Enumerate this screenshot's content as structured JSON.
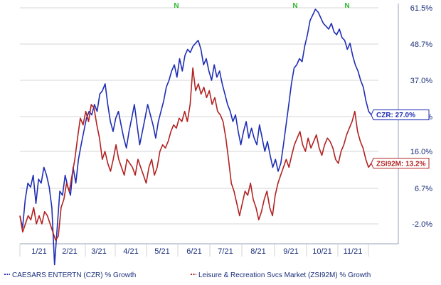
{
  "chart_data": {
    "type": "line",
    "title": "",
    "xlabel": "",
    "ylabel": "",
    "x_ticks": [
      "1/21",
      "2/21",
      "3/21",
      "4/21",
      "5/21",
      "6/21",
      "7/21",
      "8/21",
      "9/21",
      "10/21",
      "11/21"
    ],
    "y_ticks": [
      "61.5%",
      "48.7%",
      "37.0%",
      "",
      "16.0%",
      "6.7%",
      "-2.0%"
    ],
    "ylim": [
      -8,
      63
    ],
    "grid": "horizontal",
    "events": [
      "N",
      "N",
      "N"
    ],
    "series": [
      {
        "name": "CAESARS ENTERTN (CZR) % Growth",
        "color": "#1f2eb4",
        "end_label": "CZR: 27.0%",
        "values": [
          0,
          -3,
          4,
          8,
          7,
          10,
          3,
          9,
          8,
          12,
          10,
          7,
          2,
          -12,
          -3,
          6,
          5,
          10,
          7,
          5,
          12,
          8,
          14,
          18,
          22,
          26,
          28,
          27,
          30,
          28,
          33,
          34,
          36,
          30,
          25,
          22,
          26,
          28,
          24,
          20,
          17,
          22,
          26,
          30,
          24,
          18,
          22,
          26,
          30,
          27,
          24,
          20,
          25,
          28,
          31,
          35,
          37,
          40,
          42,
          38,
          44,
          40,
          45,
          47,
          46,
          48,
          49,
          50,
          47,
          42,
          44,
          40,
          37,
          42,
          38,
          40,
          36,
          33,
          30,
          28,
          25,
          27,
          22,
          18,
          22,
          25,
          20,
          23,
          20,
          18,
          24,
          20,
          16,
          19,
          15,
          12,
          14,
          11,
          13,
          18,
          24,
          30,
          36,
          41,
          42,
          44,
          43,
          48,
          52,
          57,
          59,
          61,
          60,
          58,
          56,
          55,
          54,
          56,
          53,
          52,
          54,
          51,
          50,
          47,
          49,
          45,
          42,
          40,
          37,
          35,
          31,
          28,
          27
        ]
      },
      {
        "name": "Leisure & Recreation Svcs Market (ZSI92M) % Growth",
        "color": "#b22222",
        "end_label": "ZSI92M: 13.2%",
        "values": [
          0,
          -4,
          -2,
          0,
          -1,
          2,
          -2,
          0,
          -2,
          1,
          0,
          -2,
          -4,
          -6,
          -5,
          2,
          4,
          8,
          6,
          10,
          14,
          20,
          26,
          24,
          28,
          25,
          30,
          29,
          24,
          20,
          14,
          16,
          13,
          11,
          14,
          18,
          14,
          12,
          10,
          14,
          13,
          12,
          10,
          14,
          12,
          10,
          8,
          12,
          14,
          10,
          12,
          16,
          18,
          17,
          19,
          22,
          24,
          23,
          26,
          25,
          28,
          25,
          30,
          41,
          34,
          36,
          33,
          35,
          32,
          34,
          30,
          32,
          28,
          27,
          25,
          20,
          14,
          8,
          6,
          3,
          0,
          3,
          6,
          5,
          8,
          4,
          2,
          -1,
          1,
          4,
          6,
          2,
          0,
          5,
          8,
          10,
          12,
          14,
          12,
          15,
          18,
          20,
          22,
          18,
          16,
          20,
          17,
          19,
          21,
          17,
          15,
          18,
          20,
          19,
          17,
          14,
          13,
          16,
          18,
          21,
          23,
          25,
          28,
          22,
          19,
          17,
          14,
          12,
          13
        ]
      }
    ],
    "legend": "bottom"
  },
  "legend": {
    "czr_label": "CAESARS ENTERTN (CZR) % Growth",
    "zsi_label": "Leisure & Recreation Svcs Market (ZSI92M) % Growth"
  }
}
